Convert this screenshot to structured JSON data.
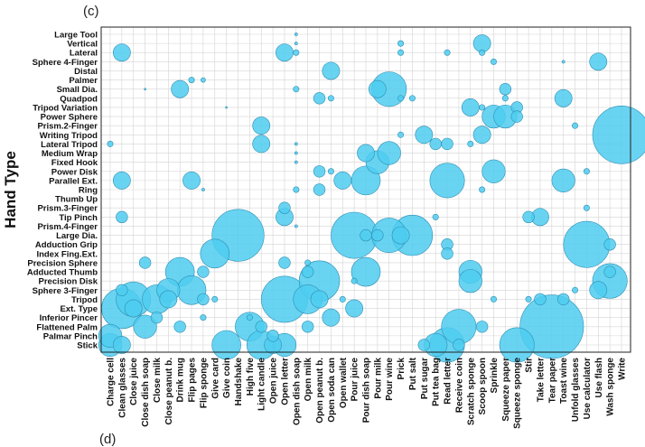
{
  "panel_label": "(c)",
  "next_panel_label": "(d)",
  "chart_data": {
    "type": "scatter",
    "title": "",
    "xlabel": "",
    "ylabel": "Hand Type",
    "grid": true,
    "marker_color": "#4fcdf0",
    "marker_edge": "#2f8fb3",
    "grid_color": "#d4d4d4",
    "x_categories": [
      "Charge cell",
      "Clean glasses",
      "Close juice",
      "Close dish soap",
      "Close milk",
      "Close peanut b.",
      "Drink mug",
      "Flip pages",
      "Flip sponge",
      "Give card",
      "Give coin",
      "Handshake",
      "High five",
      "Light candle",
      "Open juice",
      "Open letter",
      "Open dish soap",
      "Open milk",
      "Open peanut b.",
      "Open soda can",
      "Open wallet",
      "Pour juice",
      "Pour dish soap",
      "Pour milk",
      "Pour wine",
      "Prick",
      "Put salt",
      "Put sugar",
      "Put tea bag",
      "Read letter",
      "Receive coin",
      "Scratch sponge",
      "Scoop spoon",
      "Sprinkle",
      "Squeeze paper",
      "Squeeze sponge",
      "Stir",
      "Take letter",
      "Tear paper",
      "Toast wine",
      "Unfold glasses",
      "Use calculator",
      "Use flash",
      "Wash sponge",
      "Write"
    ],
    "y_categories": [
      "Large Tool",
      "Vertical",
      "Lateral",
      "Sphere 4-Finger",
      "Distal",
      "Palmer",
      "Small Dia.",
      "Quadpod",
      "Tripod Variation",
      "Power Sphere",
      "Prism.2-Finger",
      "Writing Tripod",
      "Lateral Tripod",
      "Medium Wrap",
      "Fixed Hook",
      "Power Disk",
      "Parallel Ext.",
      "Ring",
      "Thumb Up",
      "Prism.3-Finger",
      "Tip Pinch",
      "Prism.4-Finger",
      "Large Dia.",
      "Adduction Grip",
      "Index Fing.Ext.",
      "Precision Sphere",
      "Adducted Thumb",
      "Precision Disk",
      "Sphere 3-Finger",
      "Tripod",
      "Ext. Type",
      "Inferior Pincer",
      "Flattened Palm",
      "Palmar Pinch",
      "Stick"
    ],
    "points": [
      {
        "x": "Charge cell",
        "y": "Stick",
        "size": 4
      },
      {
        "x": "Charge cell",
        "y": "Palmar Pinch",
        "size": 4
      },
      {
        "x": "Charge cell",
        "y": "Lateral Tripod",
        "size": 1
      },
      {
        "x": "Clean glasses",
        "y": "Lateral",
        "size": 3
      },
      {
        "x": "Clean glasses",
        "y": "Parallel Ext.",
        "size": 3
      },
      {
        "x": "Clean glasses",
        "y": "Tip Pinch",
        "size": 2
      },
      {
        "x": "Clean glasses",
        "y": "Sphere 3-Finger",
        "size": 2
      },
      {
        "x": "Clean glasses",
        "y": "Ext. Type",
        "size": 7
      },
      {
        "x": "Clean glasses",
        "y": "Stick",
        "size": 3
      },
      {
        "x": "Close juice",
        "y": "Tripod",
        "size": 6
      },
      {
        "x": "Close juice",
        "y": "Ext. Type",
        "size": 3
      },
      {
        "x": "Close dish soap",
        "y": "Small Dia.",
        "size": 0.3
      },
      {
        "x": "Close dish soap",
        "y": "Precision Sphere",
        "size": 2
      },
      {
        "x": "Close dish soap",
        "y": "Flattened Palm",
        "size": 4
      },
      {
        "x": "Close milk",
        "y": "Tripod",
        "size": 5
      },
      {
        "x": "Close milk",
        "y": "Inferior Pincer",
        "size": 2
      },
      {
        "x": "Close peanut b.",
        "y": "Sphere 3-Finger",
        "size": 4
      },
      {
        "x": "Close peanut b.",
        "y": "Tripod",
        "size": 3
      },
      {
        "x": "Drink mug",
        "y": "Small Dia.",
        "size": 3
      },
      {
        "x": "Drink mug",
        "y": "Adducted Thumb",
        "size": 5
      },
      {
        "x": "Drink mug",
        "y": "Flattened Palm",
        "size": 2
      },
      {
        "x": "Flip pages",
        "y": "Palmer",
        "size": 1
      },
      {
        "x": "Flip pages",
        "y": "Parallel Ext.",
        "size": 3
      },
      {
        "x": "Flip pages",
        "y": "Sphere 3-Finger",
        "size": 5
      },
      {
        "x": "Flip sponge",
        "y": "Palmer",
        "size": 0.8
      },
      {
        "x": "Flip sponge",
        "y": "Ring",
        "size": 0.5
      },
      {
        "x": "Flip sponge",
        "y": "Adducted Thumb",
        "size": 2
      },
      {
        "x": "Flip sponge",
        "y": "Tripod",
        "size": 2
      },
      {
        "x": "Flip sponge",
        "y": "Inferior Pincer",
        "size": 1
      },
      {
        "x": "Give card",
        "y": "Index Fing.Ext.",
        "size": 5
      },
      {
        "x": "Give card",
        "y": "Tripod",
        "size": 1
      },
      {
        "x": "Give coin",
        "y": "Tripod Variation",
        "size": 0.3
      },
      {
        "x": "Give coin",
        "y": "Stick",
        "size": 5
      },
      {
        "x": "Handshake",
        "y": "Large Dia.",
        "size": 9
      },
      {
        "x": "High five",
        "y": "Inferior Pincer",
        "size": 1
      },
      {
        "x": "High five",
        "y": "Flattened Palm",
        "size": 5
      },
      {
        "x": "Light candle",
        "y": "Prism.2-Finger",
        "size": 3
      },
      {
        "x": "Light candle",
        "y": "Lateral Tripod",
        "size": 3
      },
      {
        "x": "Light candle",
        "y": "Flattened Palm",
        "size": 2
      },
      {
        "x": "Light candle",
        "y": "Stick",
        "size": 5
      },
      {
        "x": "Open juice",
        "y": "Palmar Pinch",
        "size": 2
      },
      {
        "x": "Open juice",
        "y": "Stick",
        "size": 3
      },
      {
        "x": "Open letter",
        "y": "Lateral",
        "size": 3
      },
      {
        "x": "Open letter",
        "y": "Prism.3-Finger",
        "size": 2
      },
      {
        "x": "Open letter",
        "y": "Tip Pinch",
        "size": 3
      },
      {
        "x": "Open letter",
        "y": "Precision Sphere",
        "size": 2
      },
      {
        "x": "Open letter",
        "y": "Tripod",
        "size": 8
      },
      {
        "x": "Open letter",
        "y": "Stick",
        "size": 4
      },
      {
        "x": "Open dish soap",
        "y": "Vertical",
        "size": 0.5
      },
      {
        "x": "Open dish soap",
        "y": "Large Tool",
        "size": 0.5
      },
      {
        "x": "Open dish soap",
        "y": "Lateral",
        "size": 1
      },
      {
        "x": "Open dish soap",
        "y": "Small Dia.",
        "size": 1
      },
      {
        "x": "Open dish soap",
        "y": "Fixed Hook",
        "size": 0.5
      },
      {
        "x": "Open dish soap",
        "y": "Medium Wrap",
        "size": 0.5
      },
      {
        "x": "Open dish soap",
        "y": "Lateral Tripod",
        "size": 0.5
      },
      {
        "x": "Open dish soap",
        "y": "Ring",
        "size": 1
      },
      {
        "x": "Open dish soap",
        "y": "Prism.4-Finger",
        "size": 0.5
      },
      {
        "x": "Open milk",
        "y": "Precision Sphere",
        "size": 1
      },
      {
        "x": "Open milk",
        "y": "Adducted Thumb",
        "size": 2
      },
      {
        "x": "Open milk",
        "y": "Tripod",
        "size": 5
      },
      {
        "x": "Open milk",
        "y": "Flattened Palm",
        "size": 2
      },
      {
        "x": "Open peanut b.",
        "y": "Quadpod",
        "size": 2
      },
      {
        "x": "Open peanut b.",
        "y": "Power Disk",
        "size": 2
      },
      {
        "x": "Open peanut b.",
        "y": "Ring",
        "size": 2
      },
      {
        "x": "Open peanut b.",
        "y": "Precision Disk",
        "size": 7
      },
      {
        "x": "Open peanut b.",
        "y": "Tripod",
        "size": 3
      },
      {
        "x": "Open soda can",
        "y": "Distal",
        "size": 3
      },
      {
        "x": "Open soda can",
        "y": "Quadpod",
        "size": 1
      },
      {
        "x": "Open soda can",
        "y": "Power Disk",
        "size": 1
      },
      {
        "x": "Open soda can",
        "y": "Inferior Pincer",
        "size": 3
      },
      {
        "x": "Open wallet",
        "y": "Parallel Ext.",
        "size": 3
      },
      {
        "x": "Open wallet",
        "y": "Tripod",
        "size": 1
      },
      {
        "x": "Pour juice",
        "y": "Large Dia.",
        "size": 8
      },
      {
        "x": "Pour juice",
        "y": "Precision Disk",
        "size": 1
      },
      {
        "x": "Pour juice",
        "y": "Ext. Type",
        "size": 3
      },
      {
        "x": "Pour dish soap",
        "y": "Parallel Ext.",
        "size": 5
      },
      {
        "x": "Pour dish soap",
        "y": "Medium Wrap",
        "size": 3
      },
      {
        "x": "Pour dish soap",
        "y": "Large Dia.",
        "size": 2
      },
      {
        "x": "Pour dish soap",
        "y": "Adducted Thumb",
        "size": 5
      },
      {
        "x": "Pour milk",
        "y": "Small Dia.",
        "size": 3
      },
      {
        "x": "Pour milk",
        "y": "Fixed Hook",
        "size": 4
      },
      {
        "x": "Pour milk",
        "y": "Large Dia.",
        "size": 2
      },
      {
        "x": "Pour wine",
        "y": "Small Dia.",
        "size": 6
      },
      {
        "x": "Pour wine",
        "y": "Medium Wrap",
        "size": 4
      },
      {
        "x": "Pour wine",
        "y": "Large Dia.",
        "size": 6
      },
      {
        "x": "Prick",
        "y": "Vertical",
        "size": 1
      },
      {
        "x": "Prick",
        "y": "Lateral",
        "size": 1
      },
      {
        "x": "Prick",
        "y": "Quadpod",
        "size": 1
      },
      {
        "x": "Prick",
        "y": "Writing Tripod",
        "size": 1
      },
      {
        "x": "Prick",
        "y": "Large Dia.",
        "size": 3
      },
      {
        "x": "Put salt",
        "y": "Large Dia.",
        "size": 7
      },
      {
        "x": "Put salt",
        "y": "Quadpod",
        "size": 1
      },
      {
        "x": "Put sugar",
        "y": "Writing Tripod",
        "size": 3
      },
      {
        "x": "Put sugar",
        "y": "Stick",
        "size": 2
      },
      {
        "x": "Put tea bag",
        "y": "Lateral Tripod",
        "size": 2
      },
      {
        "x": "Put tea bag",
        "y": "Tip Pinch",
        "size": 1
      },
      {
        "x": "Put tea bag",
        "y": "Stick",
        "size": 4
      },
      {
        "x": "Read letter",
        "y": "Lateral",
        "size": 1
      },
      {
        "x": "Read letter",
        "y": "Lateral Tripod",
        "size": 2
      },
      {
        "x": "Read letter",
        "y": "Parallel Ext.",
        "size": 6
      },
      {
        "x": "Read letter",
        "y": "Adduction Grip",
        "size": 2
      },
      {
        "x": "Read letter",
        "y": "Index Fing.Ext.",
        "size": 2
      },
      {
        "x": "Read letter",
        "y": "Stick",
        "size": 6
      },
      {
        "x": "Receive coin",
        "y": "Flattened Palm",
        "size": 6
      },
      {
        "x": "Receive coin",
        "y": "Stick",
        "size": 2
      },
      {
        "x": "Scratch sponge",
        "y": "Tripod Variation",
        "size": 3
      },
      {
        "x": "Scratch sponge",
        "y": "Lateral Tripod",
        "size": 1
      },
      {
        "x": "Scratch sponge",
        "y": "Adducted Thumb",
        "size": 4
      },
      {
        "x": "Scratch sponge",
        "y": "Precision Disk",
        "size": 4
      },
      {
        "x": "Scoop spoon",
        "y": "Vertical",
        "size": 3
      },
      {
        "x": "Scoop spoon",
        "y": "Lateral",
        "size": 1
      },
      {
        "x": "Scoop spoon",
        "y": "Tripod Variation",
        "size": 1
      },
      {
        "x": "Scoop spoon",
        "y": "Writing Tripod",
        "size": 3
      },
      {
        "x": "Scoop spoon",
        "y": "Ring",
        "size": 1
      },
      {
        "x": "Scoop spoon",
        "y": "Flattened Palm",
        "size": 2
      },
      {
        "x": "Sprinkle",
        "y": "Power Sphere",
        "size": 4
      },
      {
        "x": "Sprinkle",
        "y": "Power Disk",
        "size": 4
      },
      {
        "x": "Sprinkle",
        "y": "Sphere 4-Finger",
        "size": 1
      },
      {
        "x": "Sprinkle",
        "y": "Tripod",
        "size": 1
      },
      {
        "x": "Squeeze paper",
        "y": "Power Sphere",
        "size": 4
      },
      {
        "x": "Squeeze paper",
        "y": "Small Dia.",
        "size": 2
      },
      {
        "x": "Squeeze paper",
        "y": "Quadpod",
        "size": 1
      },
      {
        "x": "Squeeze sponge",
        "y": "Tripod Variation",
        "size": 2
      },
      {
        "x": "Squeeze sponge",
        "y": "Power Sphere",
        "size": 2
      },
      {
        "x": "Squeeze sponge",
        "y": "Stick",
        "size": 6
      },
      {
        "x": "Stir",
        "y": "Tip Pinch",
        "size": 2
      },
      {
        "x": "Stir",
        "y": "Tripod",
        "size": 1
      },
      {
        "x": "Take letter",
        "y": "Tip Pinch",
        "size": 3
      },
      {
        "x": "Take letter",
        "y": "Tripod",
        "size": 2
      },
      {
        "x": "Tear paper",
        "y": "Flattened Palm",
        "size": 11
      },
      {
        "x": "Toast wine",
        "y": "Sphere 4-Finger",
        "size": 0.5
      },
      {
        "x": "Toast wine",
        "y": "Quadpod",
        "size": 3
      },
      {
        "x": "Toast wine",
        "y": "Parallel Ext.",
        "size": 4
      },
      {
        "x": "Toast wine",
        "y": "Tripod",
        "size": 2
      },
      {
        "x": "Unfold glasses",
        "y": "Prism.2-Finger",
        "size": 1
      },
      {
        "x": "Unfold glasses",
        "y": "Sphere 3-Finger",
        "size": 1
      },
      {
        "x": "Use calculator",
        "y": "Power Disk",
        "size": 1
      },
      {
        "x": "Use calculator",
        "y": "Prism.3-Finger",
        "size": 1
      },
      {
        "x": "Use calculator",
        "y": "Adduction Grip",
        "size": 8
      },
      {
        "x": "Use flash",
        "y": "Sphere 4-Finger",
        "size": 3
      },
      {
        "x": "Use flash",
        "y": "Sphere 3-Finger",
        "size": 3
      },
      {
        "x": "Wash sponge",
        "y": "Precision Disk",
        "size": 6
      },
      {
        "x": "Wash sponge",
        "y": "Adducted Thumb",
        "size": 2
      },
      {
        "x": "Wash sponge",
        "y": "Adduction Grip",
        "size": 2
      },
      {
        "x": "Write",
        "y": "Writing Tripod",
        "size": 10
      }
    ]
  }
}
